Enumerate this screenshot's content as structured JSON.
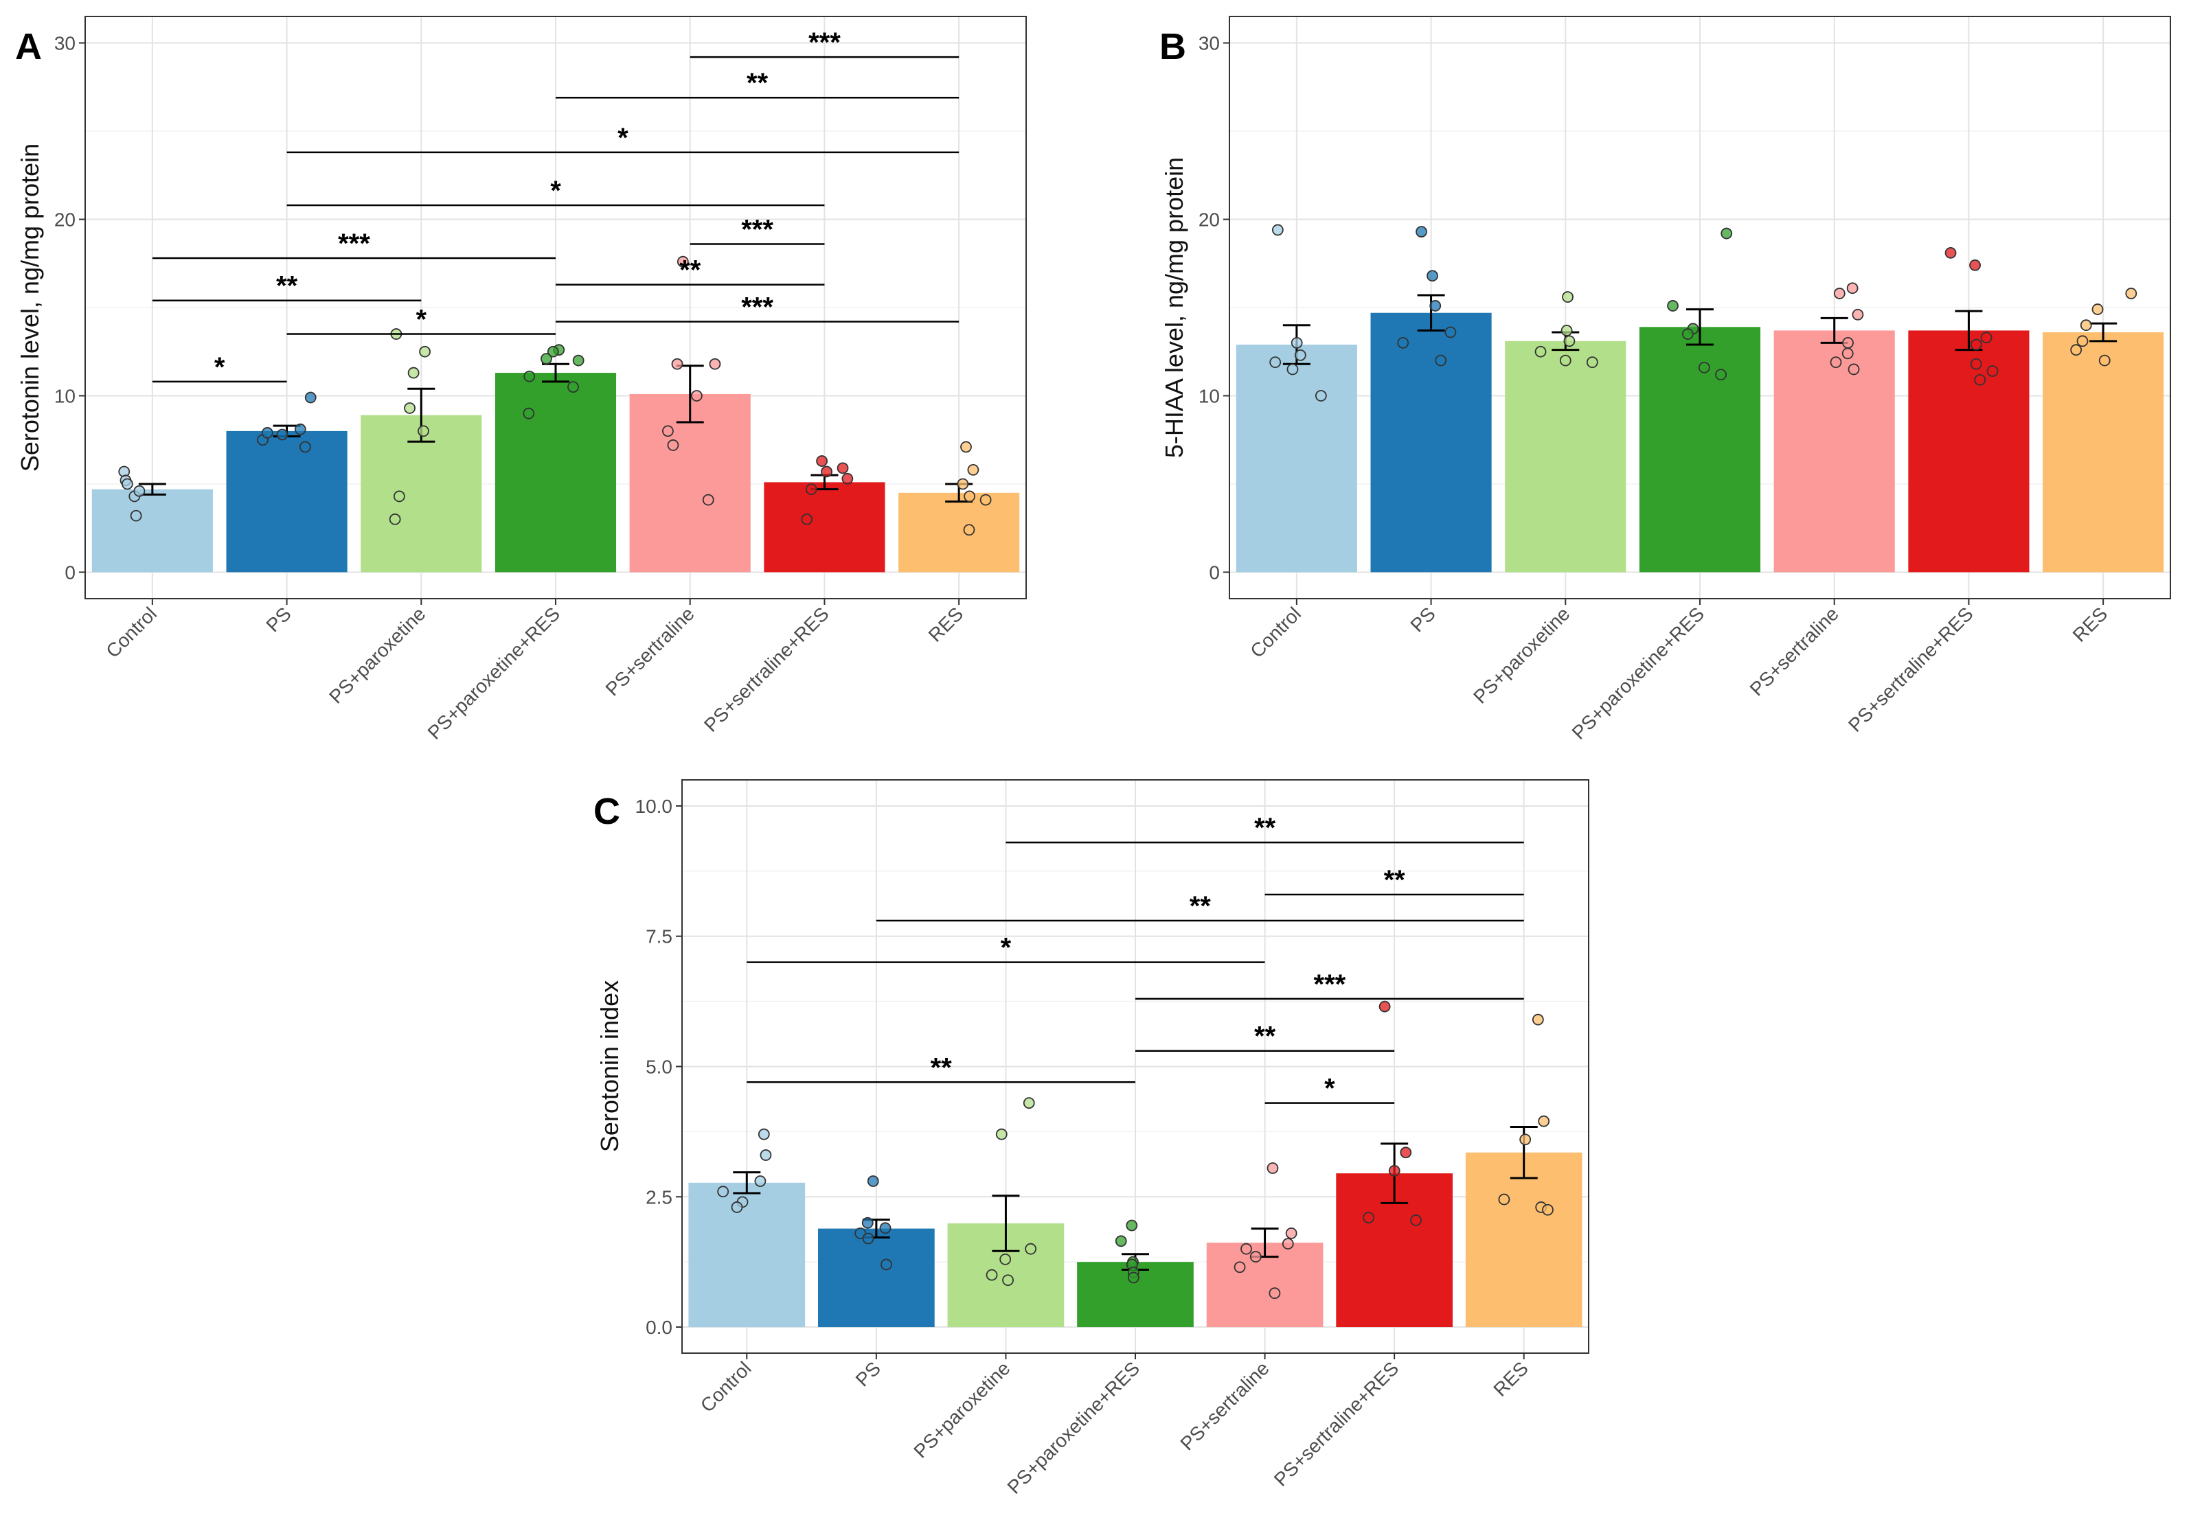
{
  "figure": {
    "categories": [
      "Control",
      "PS",
      "PS+paroxetine",
      "PS+paroxetine+RES",
      "PS+sertraline",
      "PS+sertraline+RES",
      "RES"
    ],
    "colors": [
      "#a6cee3",
      "#1f78b4",
      "#b2df8a",
      "#33a02c",
      "#fb9a99",
      "#e31a1c",
      "#fdbf6f"
    ]
  },
  "chart_data": [
    {
      "panel": "A",
      "type": "bar",
      "ylabel": "Serotonin level, ng/mg protein",
      "ylim": [
        -1.5,
        31.5
      ],
      "yticks": [
        0,
        10,
        20,
        30
      ],
      "tick_labels": [
        "0",
        "10",
        "20",
        "30"
      ],
      "values": [
        4.7,
        8.0,
        8.9,
        11.3,
        10.1,
        5.1,
        4.5
      ],
      "errors": [
        0.3,
        0.3,
        1.5,
        0.5,
        1.6,
        0.4,
        0.5
      ],
      "points": [
        [
          5.7,
          4.3,
          5.2,
          4.6,
          3.2,
          5.0
        ],
        [
          9.9,
          8.1,
          7.5,
          7.8,
          7.1,
          7.9
        ],
        [
          13.5,
          12.5,
          11.3,
          9.3,
          8.0,
          4.3,
          3.0
        ],
        [
          12.6,
          12.5,
          12.1,
          12.0,
          11.1,
          10.5,
          9.0
        ],
        [
          17.6,
          11.8,
          11.8,
          10.0,
          8.0,
          7.2,
          4.1
        ],
        [
          6.3,
          5.9,
          5.7,
          5.3,
          4.7,
          3.0
        ],
        [
          7.1,
          5.8,
          5.0,
          4.3,
          4.1,
          2.4
        ]
      ],
      "comparisons": [
        {
          "from": 4,
          "to": 6,
          "y": 29.2,
          "label": "***"
        },
        {
          "from": 3,
          "to": 6,
          "y": 26.9,
          "label": "**"
        },
        {
          "from": 1,
          "to": 6,
          "y": 23.8,
          "label": "*"
        },
        {
          "from": 1,
          "to": 5,
          "y": 20.8,
          "label": "*"
        },
        {
          "from": 4,
          "to": 5,
          "y": 18.6,
          "label": "***"
        },
        {
          "from": 0,
          "to": 3,
          "y": 17.8,
          "label": "***"
        },
        {
          "from": 3,
          "to": 5,
          "y": 16.3,
          "label": "**"
        },
        {
          "from": 0,
          "to": 2,
          "y": 15.4,
          "label": "**"
        },
        {
          "from": 3,
          "to": 6,
          "y": 14.2,
          "label": "***"
        },
        {
          "from": 1,
          "to": 3,
          "y": 13.5,
          "label": "*"
        },
        {
          "from": 0,
          "to": 1,
          "y": 10.8,
          "label": "*"
        }
      ]
    },
    {
      "panel": "B",
      "type": "bar",
      "ylabel": "5-HIAA level, ng/mg protein",
      "ylim": [
        -1.5,
        31.5
      ],
      "yticks": [
        0,
        10,
        20,
        30
      ],
      "tick_labels": [
        "0",
        "10",
        "20",
        "30"
      ],
      "values": [
        12.9,
        14.7,
        13.1,
        13.9,
        13.7,
        13.7,
        13.6
      ],
      "errors": [
        1.1,
        1.0,
        0.5,
        1.0,
        0.7,
        1.1,
        0.5
      ],
      "points": [
        [
          19.4,
          13.0,
          12.3,
          11.9,
          11.5,
          10.0
        ],
        [
          19.3,
          16.8,
          15.1,
          13.6,
          13.0,
          12.0
        ],
        [
          15.6,
          13.7,
          13.1,
          12.5,
          12.0,
          11.9
        ],
        [
          19.2,
          15.1,
          13.8,
          13.5,
          11.6,
          11.2
        ],
        [
          16.1,
          15.8,
          14.6,
          13.0,
          12.4,
          11.9,
          11.5
        ],
        [
          18.1,
          17.4,
          13.3,
          12.9,
          11.8,
          11.4,
          10.9
        ],
        [
          15.8,
          14.9,
          14.0,
          13.1,
          12.6,
          12.0
        ]
      ],
      "comparisons": []
    },
    {
      "panel": "C",
      "type": "bar",
      "ylabel": "Serotonin index",
      "ylim": [
        -0.5,
        10.5
      ],
      "yticks": [
        0,
        2.5,
        5,
        7.5,
        10
      ],
      "tick_labels": [
        "0.0",
        "2.5",
        "5.0",
        "7.5",
        "10.0"
      ],
      "values": [
        2.77,
        1.89,
        1.99,
        1.25,
        1.62,
        2.95,
        3.35
      ],
      "errors": [
        0.2,
        0.17,
        0.53,
        0.15,
        0.27,
        0.57,
        0.49
      ],
      "points": [
        [
          3.7,
          3.3,
          2.8,
          2.6,
          2.4,
          2.3
        ],
        [
          2.8,
          2.0,
          1.9,
          1.8,
          1.7,
          1.2
        ],
        [
          4.3,
          3.7,
          1.5,
          1.3,
          1.0,
          0.9
        ],
        [
          1.95,
          1.65,
          1.25,
          1.2,
          1.05,
          0.95
        ],
        [
          3.05,
          1.8,
          1.6,
          1.5,
          1.35,
          1.15,
          0.65
        ],
        [
          6.15,
          3.35,
          3.0,
          2.1,
          2.05
        ],
        [
          5.9,
          3.95,
          3.6,
          2.45,
          2.3,
          2.25
        ]
      ],
      "comparisons": [
        {
          "from": 2,
          "to": 6,
          "y": 9.3,
          "label": "**"
        },
        {
          "from": 4,
          "to": 6,
          "y": 8.3,
          "label": "**"
        },
        {
          "from": 1,
          "to": 6,
          "y": 7.8,
          "label": "**"
        },
        {
          "from": 0,
          "to": 4,
          "y": 7.0,
          "label": "*"
        },
        {
          "from": 3,
          "to": 6,
          "y": 6.3,
          "label": "***"
        },
        {
          "from": 3,
          "to": 5,
          "y": 5.3,
          "label": "**"
        },
        {
          "from": 0,
          "to": 3,
          "y": 4.7,
          "label": "**"
        },
        {
          "from": 4,
          "to": 5,
          "y": 4.3,
          "label": "*"
        }
      ]
    }
  ]
}
